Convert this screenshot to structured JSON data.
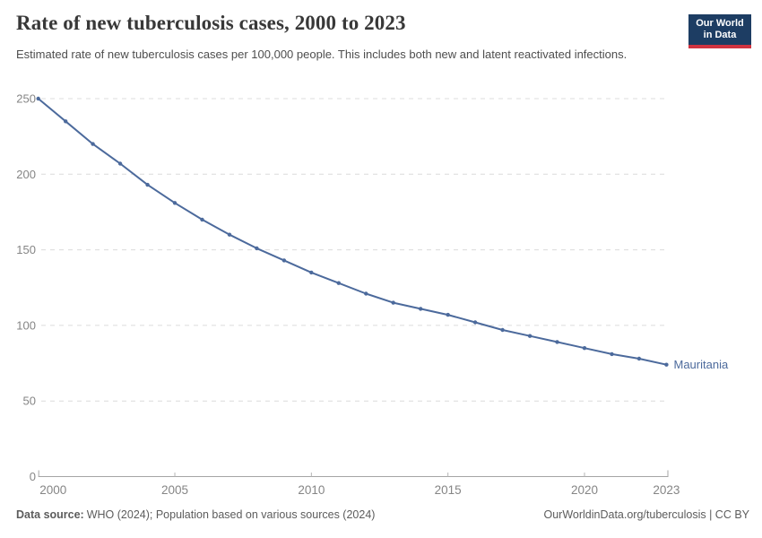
{
  "header": {
    "title": "Rate of new tuberculosis cases, 2000 to 2023",
    "subtitle": "Estimated rate of new tuberculosis cases per 100,000 people. This includes both new and latent reactivated infections.",
    "logo": {
      "line1": "Our World",
      "line2": "in Data"
    }
  },
  "chart_data": {
    "type": "line",
    "title": "Rate of new tuberculosis cases, 2000 to 2023",
    "xlabel": "",
    "ylabel": "",
    "x": [
      2000,
      2001,
      2002,
      2003,
      2004,
      2005,
      2006,
      2007,
      2008,
      2009,
      2010,
      2011,
      2012,
      2013,
      2014,
      2015,
      2016,
      2017,
      2018,
      2019,
      2020,
      2021,
      2022,
      2023
    ],
    "series": [
      {
        "name": "Mauritania",
        "color": "#4c6a9c",
        "values": [
          250,
          235,
          220,
          207,
          193,
          181,
          170,
          160,
          151,
          143,
          135,
          128,
          121,
          115,
          111,
          107,
          102,
          97,
          93,
          89,
          85,
          81,
          78,
          74
        ]
      }
    ],
    "x_ticks": [
      2000,
      2005,
      2010,
      2015,
      2020,
      2023
    ],
    "y_ticks": [
      0,
      50,
      100,
      150,
      200,
      250
    ],
    "xlim": [
      2000,
      2023
    ],
    "ylim": [
      0,
      250
    ],
    "grid": "horizontal-dashed",
    "legend_position": "line-end-label"
  },
  "footer": {
    "source_label": "Data source:",
    "source_text": "WHO (2024); Population based on various sources (2024)",
    "attribution": "OurWorldinData.org/tuberculosis | CC BY"
  },
  "colors": {
    "line": "#4c6a9c",
    "axis_text": "#858585",
    "gridline": "#dcdcdc",
    "axis_line": "#a5a5a5",
    "tick": "#b5b5b5",
    "logo_bg": "#1d3d63",
    "logo_accent": "#d03340"
  }
}
